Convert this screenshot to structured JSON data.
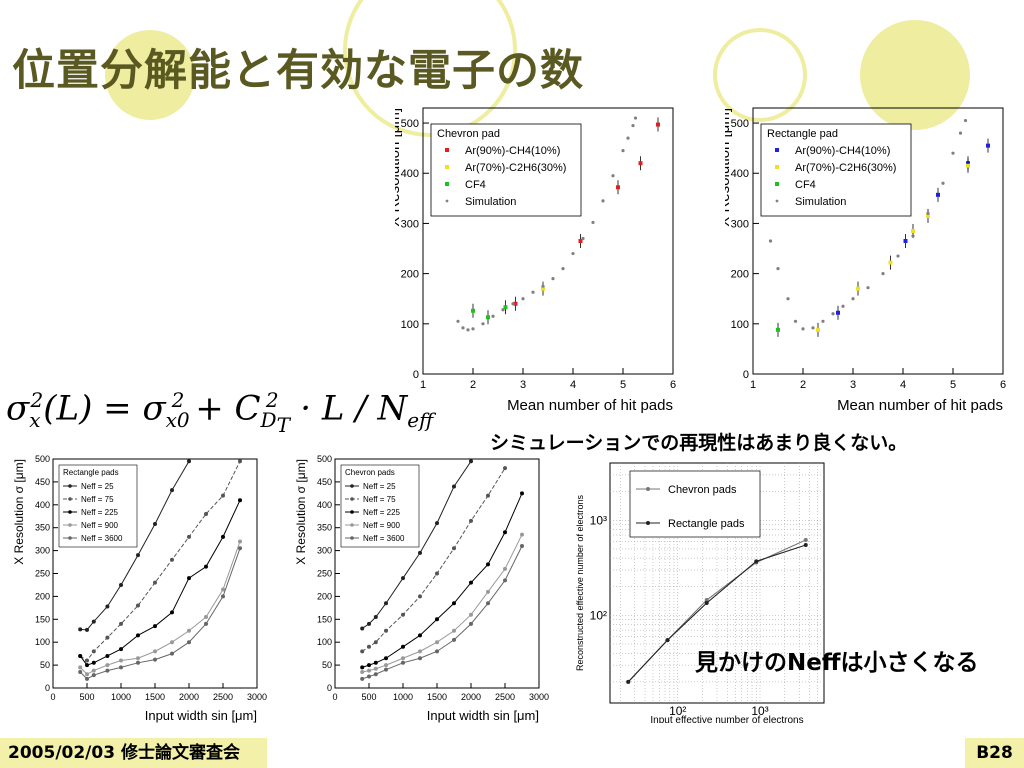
{
  "slide": {
    "title": "位置分解能と有効な電子の数",
    "note_resolution": "シミュレーションでの再現性はあまり良くない。",
    "note_neff": "見かけのNeffは小さくなる",
    "footer_date": "2005/02/03 修士論文審査会",
    "footer_page": "B28",
    "formula_text": "σx²(L) = σx0² + C²DT · L / Neff",
    "colors": {
      "title": "#595921",
      "footer_bg": "#f2f0a9",
      "circle": "#efeda0"
    }
  },
  "chart_data": [
    {
      "type": "scatter",
      "title": "Chevron pad",
      "xlabel": "Mean number of hit pads",
      "ylabel": "X Resolution [μm]",
      "xlim": [
        1,
        6
      ],
      "ylim": [
        0,
        530
      ],
      "xticks": [
        "1",
        "2",
        "3",
        "4",
        "5",
        "6"
      ],
      "yticks": [
        "0",
        "100",
        "200",
        "300",
        "400",
        "500"
      ],
      "legend": [
        "Ar(90%)-CH4(10%)",
        "Ar(70%)-C2H6(30%)",
        "CF4",
        "Simulation"
      ],
      "legend_position": "top-left",
      "series": [
        {
          "name": "Ar(90%)-CH4(10%)",
          "color": "#e02020",
          "x": [
            2.85,
            4.15,
            4.9,
            5.35,
            5.7
          ],
          "y": [
            140,
            265,
            372,
            420,
            497
          ]
        },
        {
          "name": "Ar(70%)-C2H6(30%)",
          "color": "#f0e020",
          "x": [
            3.4
          ],
          "y": [
            170
          ]
        },
        {
          "name": "CF4",
          "color": "#20c020",
          "x": [
            2.0,
            2.3,
            2.65
          ],
          "y": [
            126,
            113,
            133
          ]
        },
        {
          "name": "Simulation",
          "color": "#808080",
          "x": [
            1.7,
            1.8,
            1.9,
            2.0,
            2.2,
            2.4,
            2.6,
            2.8,
            3.0,
            3.2,
            3.4,
            3.6,
            3.8,
            4.0,
            4.2,
            4.4,
            4.6,
            4.8,
            5.0,
            5.1,
            5.2,
            5.25
          ],
          "y": [
            105,
            92,
            88,
            90,
            100,
            115,
            128,
            140,
            150,
            163,
            175,
            190,
            210,
            240,
            270,
            302,
            345,
            395,
            445,
            470,
            495,
            510
          ]
        }
      ]
    },
    {
      "type": "scatter",
      "title": "Rectangle pad",
      "xlabel": "Mean number of hit pads",
      "ylabel": "X Resolution [μm]",
      "xlim": [
        1,
        6
      ],
      "ylim": [
        0,
        530
      ],
      "xticks": [
        "1",
        "2",
        "3",
        "4",
        "5",
        "6"
      ],
      "yticks": [
        "0",
        "100",
        "200",
        "300",
        "400",
        "500"
      ],
      "legend": [
        "Ar(90%)-CH4(10%)",
        "Ar(70%)-C2H6(30%)",
        "CF4",
        "Simulation"
      ],
      "legend_position": "top-left",
      "series": [
        {
          "name": "Ar(90%)-CH4(10%)",
          "color": "#2020e0",
          "x": [
            2.7,
            4.05,
            4.7,
            5.3,
            5.7
          ],
          "y": [
            122,
            265,
            357,
            420,
            455
          ]
        },
        {
          "name": "Ar(70%)-C2H6(30%)",
          "color": "#f0e020",
          "x": [
            2.3,
            3.1,
            3.75,
            4.2,
            4.5,
            5.3
          ],
          "y": [
            88,
            170,
            222,
            285,
            315,
            415
          ]
        },
        {
          "name": "CF4",
          "color": "#20c020",
          "x": [
            1.5
          ],
          "y": [
            88
          ]
        },
        {
          "name": "Simulation",
          "color": "#808080",
          "x": [
            1.35,
            1.5,
            1.7,
            1.85,
            2.0,
            2.2,
            2.4,
            2.6,
            2.8,
            3.0,
            3.3,
            3.6,
            3.9,
            4.2,
            4.5,
            4.8,
            5.0,
            5.15,
            5.25
          ],
          "y": [
            265,
            210,
            150,
            105,
            90,
            92,
            105,
            120,
            135,
            150,
            172,
            200,
            235,
            275,
            320,
            380,
            440,
            480,
            505
          ]
        }
      ]
    },
    {
      "type": "line",
      "title": "Rectangle pads",
      "xlabel": "Input width sin [μm]",
      "ylabel": "X Resolution σ [μm]",
      "xlim": [
        0,
        3000
      ],
      "ylim": [
        0,
        500
      ],
      "xticks": [
        "0",
        "500",
        "1000",
        "1500",
        "2000",
        "2500",
        "3000"
      ],
      "yticks": [
        "0",
        "50",
        "100",
        "150",
        "200",
        "250",
        "300",
        "350",
        "400",
        "450",
        "500"
      ],
      "legend": [
        "Neff = 25",
        "Neff = 75",
        "Neff = 225",
        "Neff = 900",
        "Neff = 3600"
      ],
      "legend_position": "top-left",
      "x": [
        400,
        500,
        600,
        800,
        1000,
        1250,
        1500,
        1750,
        2000,
        2250,
        2500,
        2750
      ],
      "series": [
        {
          "name": "Neff = 25",
          "values": [
            128,
            127,
            145,
            178,
            225,
            290,
            358,
            432,
            495,
            null,
            null,
            null
          ]
        },
        {
          "name": "Neff = 75",
          "values": [
            70,
            60,
            80,
            110,
            140,
            180,
            230,
            280,
            330,
            380,
            420,
            495
          ]
        },
        {
          "name": "Neff = 225",
          "values": [
            70,
            50,
            55,
            70,
            85,
            115,
            135,
            165,
            240,
            265,
            330,
            410
          ]
        },
        {
          "name": "Neff = 900",
          "values": [
            45,
            30,
            38,
            50,
            60,
            65,
            80,
            100,
            125,
            155,
            215,
            320
          ]
        },
        {
          "name": "Neff = 3600",
          "values": [
            35,
            20,
            28,
            38,
            45,
            55,
            62,
            75,
            100,
            140,
            200,
            305
          ]
        }
      ]
    },
    {
      "type": "line",
      "title": "Chevron pads",
      "xlabel": "Input width sin [μm]",
      "ylabel": "X Resolution σ [μm]",
      "xlim": [
        0,
        3000
      ],
      "ylim": [
        0,
        500
      ],
      "xticks": [
        "0",
        "500",
        "1000",
        "1500",
        "2000",
        "2500",
        "3000"
      ],
      "yticks": [
        "0",
        "50",
        "100",
        "150",
        "200",
        "250",
        "300",
        "350",
        "400",
        "450",
        "500"
      ],
      "legend": [
        "Neff = 25",
        "Neff = 75",
        "Neff = 225",
        "Neff = 900",
        "Neff = 3600"
      ],
      "legend_position": "top-left",
      "x": [
        400,
        500,
        600,
        750,
        1000,
        1250,
        1500,
        1750,
        2000,
        2250,
        2500,
        2750
      ],
      "series": [
        {
          "name": "Neff = 25",
          "values": [
            130,
            140,
            155,
            185,
            240,
            295,
            360,
            440,
            495,
            null,
            null,
            null
          ]
        },
        {
          "name": "Neff = 75",
          "values": [
            80,
            90,
            100,
            125,
            160,
            200,
            250,
            305,
            365,
            420,
            480,
            null
          ]
        },
        {
          "name": "Neff = 225",
          "values": [
            45,
            50,
            55,
            65,
            90,
            115,
            150,
            185,
            230,
            270,
            340,
            425
          ]
        },
        {
          "name": "Neff = 900",
          "values": [
            35,
            38,
            42,
            50,
            65,
            80,
            100,
            125,
            160,
            210,
            260,
            335
          ]
        },
        {
          "name": "Neff = 3600",
          "values": [
            20,
            25,
            30,
            40,
            55,
            65,
            80,
            105,
            140,
            185,
            235,
            310
          ]
        }
      ]
    },
    {
      "type": "line",
      "title": "",
      "xlabel": "Input effective number of electrons",
      "ylabel": "Reconstructed effective number of electrons",
      "log_x": true,
      "log_y": true,
      "xlim": [
        15,
        6000
      ],
      "ylim": [
        12,
        4000
      ],
      "xticks": [
        "10²",
        "10³"
      ],
      "yticks": [
        "10²",
        "10³"
      ],
      "legend": [
        "Chevron pads",
        "Rectangle pads"
      ],
      "legend_position": "top-left",
      "x": [
        25,
        75,
        225,
        900,
        3600
      ],
      "series": [
        {
          "name": "Chevron pads",
          "values": [
            20,
            55,
            145,
            360,
            620
          ]
        },
        {
          "name": "Rectangle pads",
          "values": [
            20,
            55,
            135,
            370,
            550
          ]
        }
      ]
    }
  ]
}
